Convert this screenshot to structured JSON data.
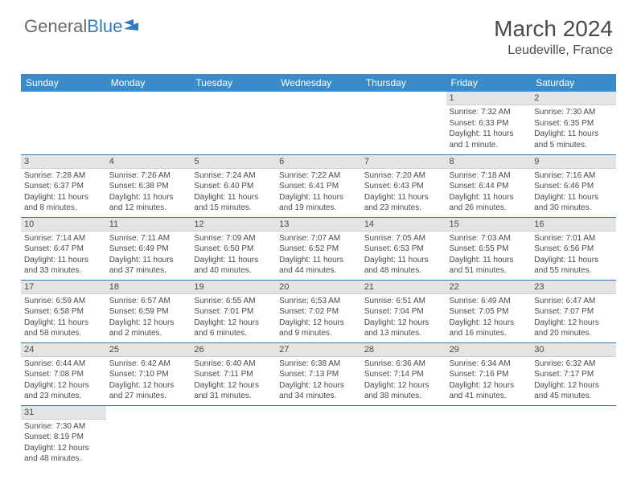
{
  "header": {
    "logo_text_1": "General",
    "logo_text_2": "Blue",
    "month_title": "March 2024",
    "location": "Leudeville, France"
  },
  "colors": {
    "header_bg": "#3b8bc9",
    "daynum_bg": "#e4e4e4",
    "row_border": "#2e7cbf",
    "text": "#4a4a4a",
    "logo_gray": "#6b6b6b",
    "logo_blue": "#2e7cbf"
  },
  "weekdays": [
    "Sunday",
    "Monday",
    "Tuesday",
    "Wednesday",
    "Thursday",
    "Friday",
    "Saturday"
  ],
  "grid": [
    [
      null,
      null,
      null,
      null,
      null,
      {
        "n": "1",
        "sr": "Sunrise: 7:32 AM",
        "ss": "Sunset: 6:33 PM",
        "dl": "Daylight: 11 hours and 1 minute."
      },
      {
        "n": "2",
        "sr": "Sunrise: 7:30 AM",
        "ss": "Sunset: 6:35 PM",
        "dl": "Daylight: 11 hours and 5 minutes."
      }
    ],
    [
      {
        "n": "3",
        "sr": "Sunrise: 7:28 AM",
        "ss": "Sunset: 6:37 PM",
        "dl": "Daylight: 11 hours and 8 minutes."
      },
      {
        "n": "4",
        "sr": "Sunrise: 7:26 AM",
        "ss": "Sunset: 6:38 PM",
        "dl": "Daylight: 11 hours and 12 minutes."
      },
      {
        "n": "5",
        "sr": "Sunrise: 7:24 AM",
        "ss": "Sunset: 6:40 PM",
        "dl": "Daylight: 11 hours and 15 minutes."
      },
      {
        "n": "6",
        "sr": "Sunrise: 7:22 AM",
        "ss": "Sunset: 6:41 PM",
        "dl": "Daylight: 11 hours and 19 minutes."
      },
      {
        "n": "7",
        "sr": "Sunrise: 7:20 AM",
        "ss": "Sunset: 6:43 PM",
        "dl": "Daylight: 11 hours and 23 minutes."
      },
      {
        "n": "8",
        "sr": "Sunrise: 7:18 AM",
        "ss": "Sunset: 6:44 PM",
        "dl": "Daylight: 11 hours and 26 minutes."
      },
      {
        "n": "9",
        "sr": "Sunrise: 7:16 AM",
        "ss": "Sunset: 6:46 PM",
        "dl": "Daylight: 11 hours and 30 minutes."
      }
    ],
    [
      {
        "n": "10",
        "sr": "Sunrise: 7:14 AM",
        "ss": "Sunset: 6:47 PM",
        "dl": "Daylight: 11 hours and 33 minutes."
      },
      {
        "n": "11",
        "sr": "Sunrise: 7:11 AM",
        "ss": "Sunset: 6:49 PM",
        "dl": "Daylight: 11 hours and 37 minutes."
      },
      {
        "n": "12",
        "sr": "Sunrise: 7:09 AM",
        "ss": "Sunset: 6:50 PM",
        "dl": "Daylight: 11 hours and 40 minutes."
      },
      {
        "n": "13",
        "sr": "Sunrise: 7:07 AM",
        "ss": "Sunset: 6:52 PM",
        "dl": "Daylight: 11 hours and 44 minutes."
      },
      {
        "n": "14",
        "sr": "Sunrise: 7:05 AM",
        "ss": "Sunset: 6:53 PM",
        "dl": "Daylight: 11 hours and 48 minutes."
      },
      {
        "n": "15",
        "sr": "Sunrise: 7:03 AM",
        "ss": "Sunset: 6:55 PM",
        "dl": "Daylight: 11 hours and 51 minutes."
      },
      {
        "n": "16",
        "sr": "Sunrise: 7:01 AM",
        "ss": "Sunset: 6:56 PM",
        "dl": "Daylight: 11 hours and 55 minutes."
      }
    ],
    [
      {
        "n": "17",
        "sr": "Sunrise: 6:59 AM",
        "ss": "Sunset: 6:58 PM",
        "dl": "Daylight: 11 hours and 58 minutes."
      },
      {
        "n": "18",
        "sr": "Sunrise: 6:57 AM",
        "ss": "Sunset: 6:59 PM",
        "dl": "Daylight: 12 hours and 2 minutes."
      },
      {
        "n": "19",
        "sr": "Sunrise: 6:55 AM",
        "ss": "Sunset: 7:01 PM",
        "dl": "Daylight: 12 hours and 6 minutes."
      },
      {
        "n": "20",
        "sr": "Sunrise: 6:53 AM",
        "ss": "Sunset: 7:02 PM",
        "dl": "Daylight: 12 hours and 9 minutes."
      },
      {
        "n": "21",
        "sr": "Sunrise: 6:51 AM",
        "ss": "Sunset: 7:04 PM",
        "dl": "Daylight: 12 hours and 13 minutes."
      },
      {
        "n": "22",
        "sr": "Sunrise: 6:49 AM",
        "ss": "Sunset: 7:05 PM",
        "dl": "Daylight: 12 hours and 16 minutes."
      },
      {
        "n": "23",
        "sr": "Sunrise: 6:47 AM",
        "ss": "Sunset: 7:07 PM",
        "dl": "Daylight: 12 hours and 20 minutes."
      }
    ],
    [
      {
        "n": "24",
        "sr": "Sunrise: 6:44 AM",
        "ss": "Sunset: 7:08 PM",
        "dl": "Daylight: 12 hours and 23 minutes."
      },
      {
        "n": "25",
        "sr": "Sunrise: 6:42 AM",
        "ss": "Sunset: 7:10 PM",
        "dl": "Daylight: 12 hours and 27 minutes."
      },
      {
        "n": "26",
        "sr": "Sunrise: 6:40 AM",
        "ss": "Sunset: 7:11 PM",
        "dl": "Daylight: 12 hours and 31 minutes."
      },
      {
        "n": "27",
        "sr": "Sunrise: 6:38 AM",
        "ss": "Sunset: 7:13 PM",
        "dl": "Daylight: 12 hours and 34 minutes."
      },
      {
        "n": "28",
        "sr": "Sunrise: 6:36 AM",
        "ss": "Sunset: 7:14 PM",
        "dl": "Daylight: 12 hours and 38 minutes."
      },
      {
        "n": "29",
        "sr": "Sunrise: 6:34 AM",
        "ss": "Sunset: 7:16 PM",
        "dl": "Daylight: 12 hours and 41 minutes."
      },
      {
        "n": "30",
        "sr": "Sunrise: 6:32 AM",
        "ss": "Sunset: 7:17 PM",
        "dl": "Daylight: 12 hours and 45 minutes."
      }
    ],
    [
      {
        "n": "31",
        "sr": "Sunrise: 7:30 AM",
        "ss": "Sunset: 8:19 PM",
        "dl": "Daylight: 12 hours and 48 minutes."
      },
      null,
      null,
      null,
      null,
      null,
      null
    ]
  ]
}
